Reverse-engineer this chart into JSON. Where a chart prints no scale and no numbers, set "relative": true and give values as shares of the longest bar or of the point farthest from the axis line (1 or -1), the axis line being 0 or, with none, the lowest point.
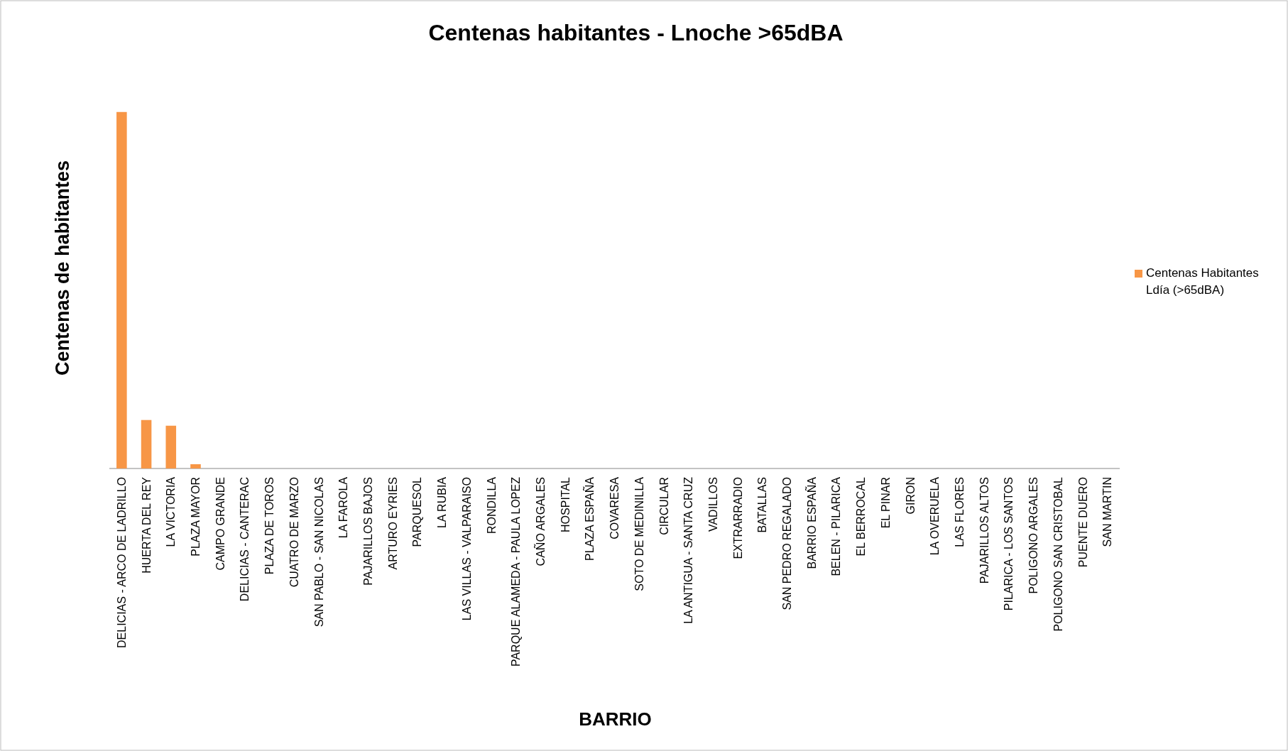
{
  "chart_data": {
    "type": "bar",
    "title": "Centenas habitantes - Lnoche  >65dBA",
    "xlabel": "BARRIO",
    "ylabel": "Centenas  de habitantes",
    "relative": true,
    "categories": [
      "DELICIAS - ARCO DE LADRILLO",
      "HUERTA DEL REY",
      "LA VICTORIA",
      "PLAZA MAYOR",
      "CAMPO GRANDE",
      "DELICIAS - CANTERAC",
      "PLAZA DE TOROS",
      "CUATRO DE MARZO",
      "SAN PABLO - SAN NICOLAS",
      "LA FAROLA",
      "PAJARILLOS BAJOS",
      "ARTURO EYRIES",
      "PARQUESOL",
      "LA RUBIA",
      "LAS VILLAS - VALPARAISO",
      "RONDILLA",
      "PARQUE ALAMEDA - PAULA LOPEZ",
      "CAÑO ARGALES",
      "HOSPITAL",
      "PLAZA ESPAÑA",
      "COVARESA",
      "SOTO DE MEDINILLA",
      "CIRCULAR",
      "LA ANTIGUA - SANTA CRUZ",
      "VADILLOS",
      "EXTRARRADIO",
      "BATALLAS",
      "SAN PEDRO REGALADO",
      "BARRIO ESPAÑA",
      "BELEN - PILARICA",
      "EL BERROCAL",
      "EL PINAR",
      "GIRON",
      "LA OVERUELA",
      "LAS FLORES",
      "PAJARILLOS ALTOS",
      "PILARICA - LOS SANTOS",
      "POLIGONO ARGALES",
      "POLIGONO SAN CRISTOBAL",
      "PUENTE DUERO",
      "SAN MARTIN"
    ],
    "series": [
      {
        "name": "Centenas Habitantes Ldía (>65dBA)",
        "color": "#f79646",
        "values": [
          1,
          0.136,
          0.12,
          0.012,
          0,
          0,
          0,
          0,
          0,
          0,
          0,
          0,
          0,
          0,
          0,
          0,
          0,
          0,
          0,
          0,
          0,
          0,
          0,
          0,
          0,
          0,
          0,
          0,
          0,
          0,
          0,
          0,
          0,
          0,
          0,
          0,
          0,
          0,
          0,
          0,
          0
        ]
      }
    ],
    "legend": "right"
  }
}
